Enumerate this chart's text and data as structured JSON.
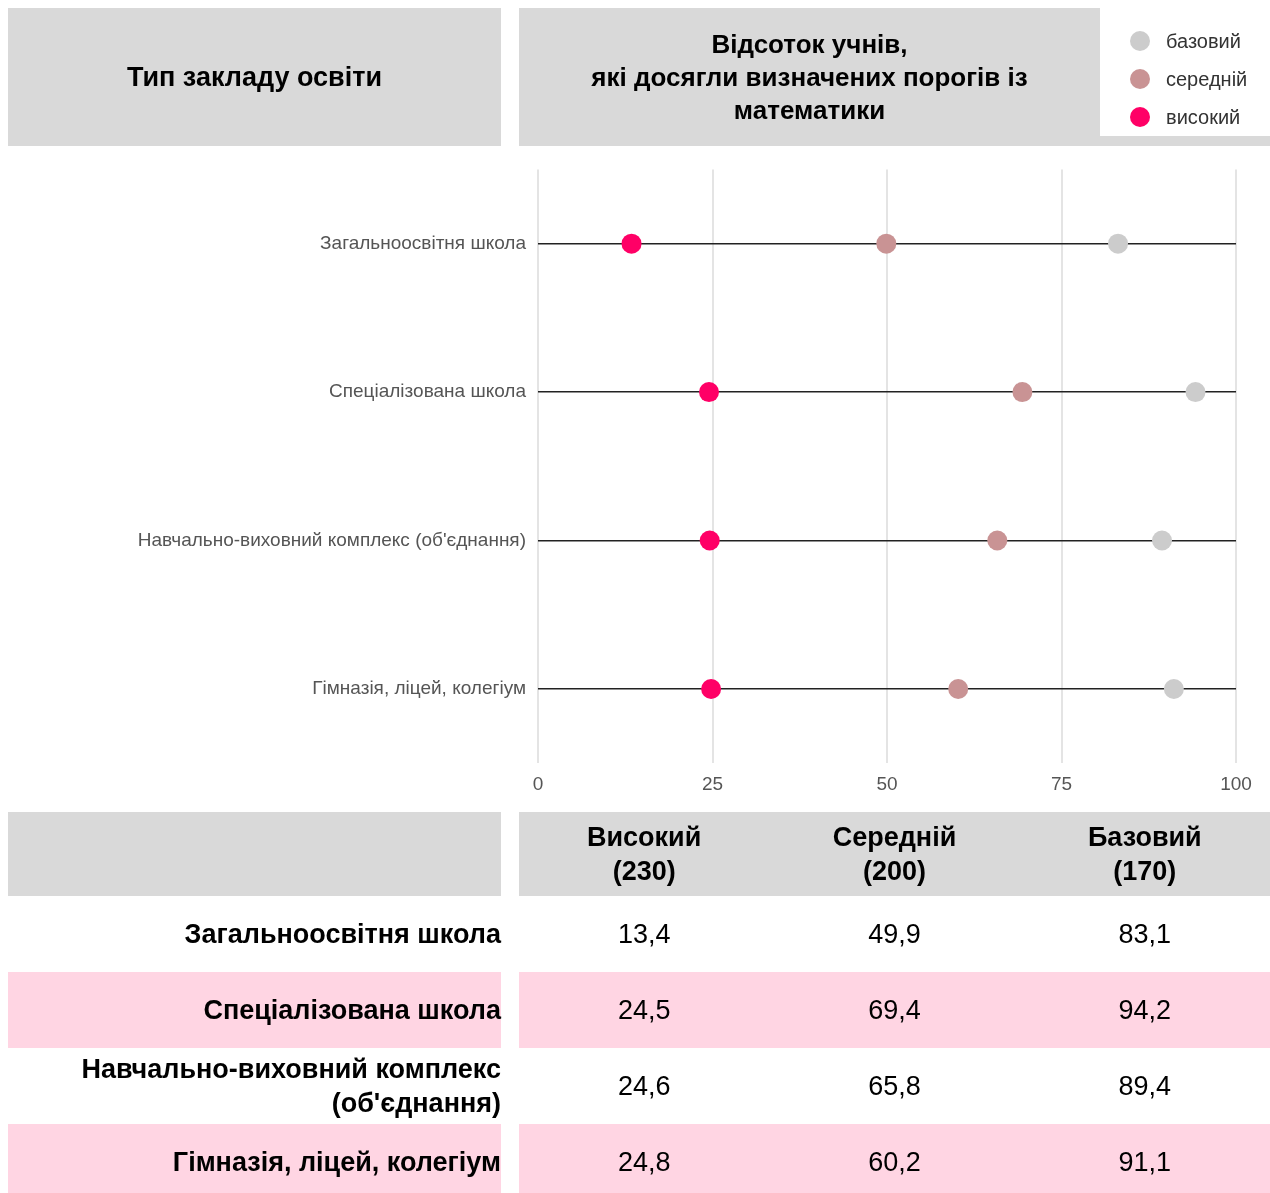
{
  "chart_data": [
    {
      "type": "scatter",
      "orientation": "horizontal",
      "title": "Відсоток учнів,\nякі досягли визначених порогів із математики",
      "categories": [
        "Загальноосвітня школа",
        "Спеціалізована школа",
        "Навчально-виховний комплекс (об'єднання)",
        "Гімназія, ліцей, колегіум"
      ],
      "series": [
        {
          "name": "базовий",
          "color": "#cccccc",
          "values": [
            83.1,
            94.2,
            89.4,
            91.1
          ]
        },
        {
          "name": "середній",
          "color": "#c99394",
          "values": [
            49.9,
            69.4,
            65.8,
            60.2
          ]
        },
        {
          "name": "високий",
          "color": "#ff0066",
          "values": [
            13.4,
            24.5,
            24.6,
            24.8
          ]
        }
      ],
      "xlim": [
        0,
        100
      ],
      "xticks": [
        0,
        25,
        50,
        75,
        100
      ],
      "grid": true,
      "legend": "top right",
      "marker": "circle",
      "annotations": [
        "Тип закладу освіти"
      ]
    },
    {
      "type": "heatmap",
      "categories": [
        "Високий\n(230)",
        "Середній\n(200)",
        "Базовий\n(170)"
      ],
      "y_categories": [
        "Загальноосвітня школа",
        "Спеціалізована школа",
        "Навчально-виховний комплекс (об'єднання)",
        "Гімназія, ліцей, колегіум"
      ],
      "cells": [
        [
          13.4,
          49.9,
          83.1
        ],
        [
          24.5,
          69.4,
          94.2
        ],
        [
          24.6,
          65.8,
          89.4
        ],
        [
          24.8,
          60.2,
          91.1
        ]
      ],
      "cell_labels": [
        [
          "13,4",
          "49,9",
          "83,1"
        ],
        [
          "24,5",
          "69,4",
          "94,2"
        ],
        [
          "24,6",
          "65,8",
          "89,4"
        ],
        [
          "24,8",
          "60,2",
          "91,1"
        ]
      ]
    }
  ]
}
